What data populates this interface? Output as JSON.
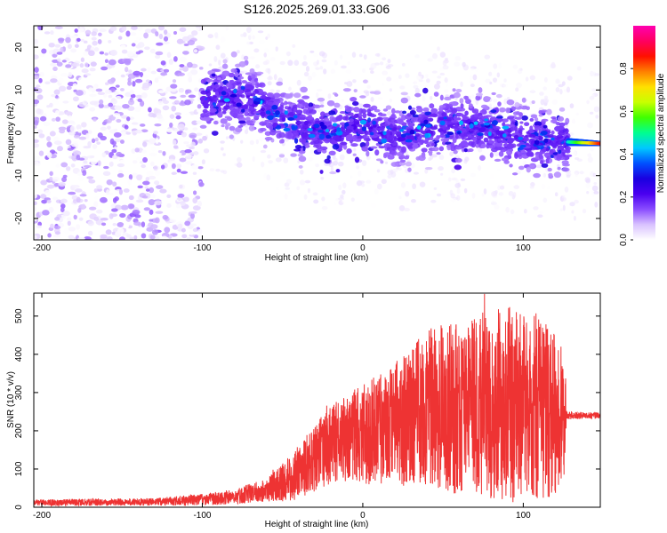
{
  "title": "S126.2025.269.01.33.G06",
  "chart_data": [
    {
      "type": "heatmap",
      "name": "spectrogram",
      "xlabel": "Height of straight line (km)",
      "ylabel": "Frequency (Hz)",
      "xlim": [
        -205,
        148
      ],
      "ylim": [
        -25,
        25
      ],
      "xticks": [
        -200,
        -100,
        0,
        100
      ],
      "yticks": [
        -20,
        -10,
        0,
        10,
        20
      ],
      "colorbar": {
        "label": "Normalized spectral amplitude",
        "range": [
          0.0,
          1.0
        ],
        "ticks": [
          0.0,
          0.2,
          0.4,
          0.6,
          0.8
        ],
        "tick_labels": [
          "0.0",
          "0.2",
          "0.4",
          "0.6",
          "0.8"
        ],
        "colormap": [
          "#ffffff",
          "#d9c2ff",
          "#8a4dff",
          "#4a00f0",
          "#1a00e0",
          "#0050ff",
          "#00c8ff",
          "#00ff90",
          "#40ff00",
          "#c8ff00",
          "#ffe000",
          "#ff8000",
          "#ff1000",
          "#ff0060",
          "#ff00b0"
        ]
      },
      "signal_trend": [
        {
          "x": -100,
          "freq": 8
        },
        {
          "x": -70,
          "freq": 8
        },
        {
          "x": -50,
          "freq": 3
        },
        {
          "x": -20,
          "freq": 0
        },
        {
          "x": 0,
          "freq": 2
        },
        {
          "x": 20,
          "freq": -1
        },
        {
          "x": 50,
          "freq": 2
        },
        {
          "x": 80,
          "freq": 1
        },
        {
          "x": 100,
          "freq": -2
        },
        {
          "x": 120,
          "freq": -2
        },
        {
          "x": 148,
          "freq": -2.5
        }
      ]
    },
    {
      "type": "line",
      "name": "snr",
      "xlabel": "Height of straight line (km)",
      "ylabel": "SNR (10 * v/v)",
      "xlim": [
        -205,
        148
      ],
      "ylim": [
        0,
        560
      ],
      "xticks": [
        -200,
        -100,
        0,
        100
      ],
      "yticks": [
        0,
        100,
        200,
        300,
        400,
        500
      ],
      "color": "#ee3333",
      "envelope": [
        {
          "x": -205,
          "mean": 12,
          "spread": 8
        },
        {
          "x": -130,
          "mean": 14,
          "spread": 10
        },
        {
          "x": -100,
          "mean": 20,
          "spread": 15
        },
        {
          "x": -80,
          "mean": 28,
          "spread": 20
        },
        {
          "x": -60,
          "mean": 45,
          "spread": 30
        },
        {
          "x": -45,
          "mean": 75,
          "spread": 60
        },
        {
          "x": -30,
          "mean": 130,
          "spread": 90
        },
        {
          "x": -15,
          "mean": 175,
          "spread": 110
        },
        {
          "x": 0,
          "mean": 190,
          "spread": 130
        },
        {
          "x": 20,
          "mean": 220,
          "spread": 160
        },
        {
          "x": 40,
          "mean": 255,
          "spread": 210
        },
        {
          "x": 70,
          "mean": 265,
          "spread": 240
        },
        {
          "x": 95,
          "mean": 270,
          "spread": 260
        },
        {
          "x": 115,
          "mean": 250,
          "spread": 230
        },
        {
          "x": 125,
          "mean": 240,
          "spread": 190
        },
        {
          "x": 127,
          "mean": 240,
          "spread": 10
        },
        {
          "x": 148,
          "mean": 240,
          "spread": 8
        }
      ]
    }
  ]
}
